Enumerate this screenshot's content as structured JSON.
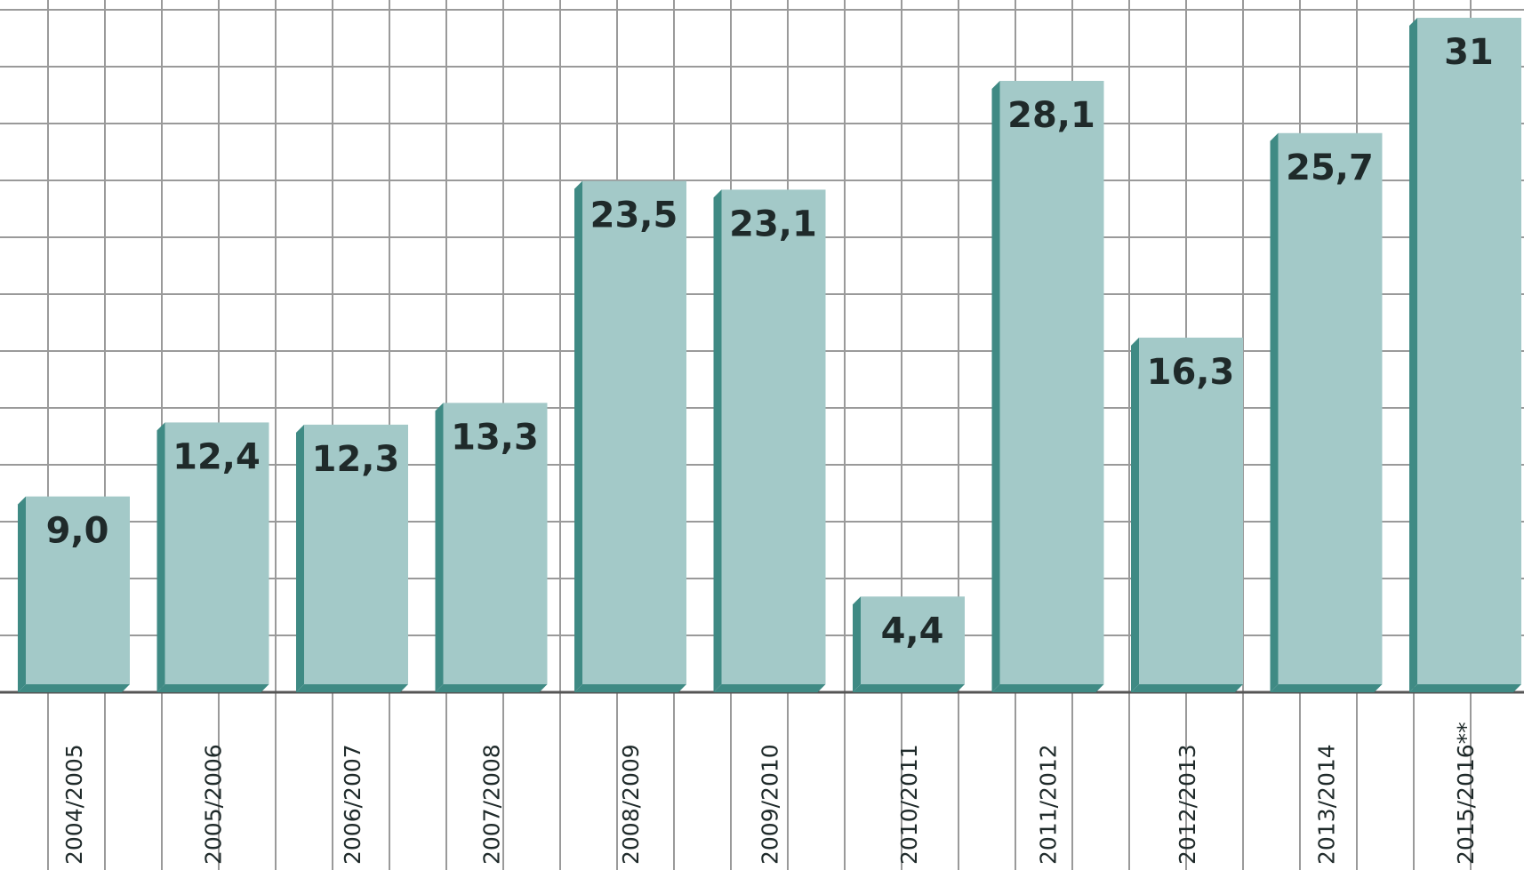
{
  "chart_data": {
    "type": "bar",
    "categories": [
      "2004/2005",
      "2005/2006",
      "2006/2007",
      "2007/2008",
      "2008/2009",
      "2009/2010",
      "2010/2011",
      "2011/2012",
      "2012/2013",
      "2013/2014",
      "2015/2016**"
    ],
    "values": [
      9.0,
      12.4,
      12.3,
      13.3,
      23.5,
      23.1,
      4.4,
      28.1,
      16.3,
      25.7,
      31
    ],
    "value_labels": [
      "9,0",
      "12,4",
      "12,3",
      "13,3",
      "23,5",
      "23,1",
      "4,4",
      "28,1",
      "16,3",
      "25,7",
      "31"
    ],
    "color": "#a3c9c8",
    "grid": true
  }
}
